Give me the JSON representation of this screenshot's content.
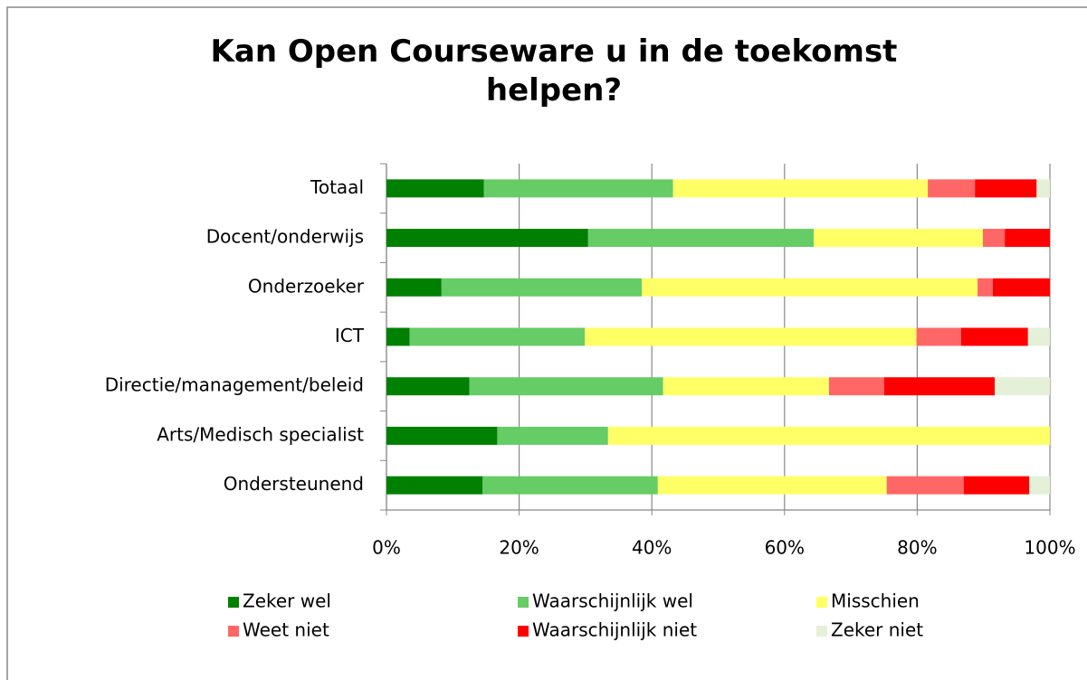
{
  "chart_data": {
    "type": "stacked_bar_horizontal",
    "title": "Kan Open Courseware u in de toekomst helpen?",
    "categories": [
      "Totaal",
      "Docent/onderwijs",
      "Onderzoeker",
      "ICT",
      "Directie/management/beleid",
      "Arts/Medisch specialist",
      "Ondersteunend"
    ],
    "series": [
      {
        "name": "Zeker wel",
        "color": "#008000",
        "values": [
          14.7,
          30.4,
          8.3,
          3.5,
          12.5,
          16.7,
          14.5
        ]
      },
      {
        "name": "Waarschijnlijk wel",
        "color": "#66cc66",
        "values": [
          28.5,
          34.0,
          30.2,
          26.4,
          29.2,
          16.7,
          26.4
        ]
      },
      {
        "name": "Misschien",
        "color": "#ffff66",
        "values": [
          38.4,
          25.5,
          50.6,
          50.0,
          25.0,
          66.6,
          34.5
        ]
      },
      {
        "name": "Weet niet",
        "color": "#ff6666",
        "values": [
          7.1,
          3.3,
          2.3,
          6.7,
          8.3,
          0,
          11.6
        ]
      },
      {
        "name": "Waarschijnlijk niet",
        "color": "#ff0000",
        "values": [
          9.3,
          6.8,
          8.6,
          10.1,
          16.7,
          0,
          9.9
        ]
      },
      {
        "name": "Zeker niet",
        "color": "#e4f0d8",
        "values": [
          2.0,
          0,
          0,
          3.3,
          8.3,
          0,
          3.1
        ]
      }
    ],
    "xlim": [
      0,
      100
    ],
    "xticks": [
      {
        "value": 0,
        "label": "0%"
      },
      {
        "value": 20,
        "label": "20%"
      },
      {
        "value": 40,
        "label": "40%"
      },
      {
        "value": 60,
        "label": "60%"
      },
      {
        "value": 80,
        "label": "80%"
      },
      {
        "value": 100,
        "label": "100%"
      }
    ],
    "grid": true,
    "legend": "bottom"
  }
}
